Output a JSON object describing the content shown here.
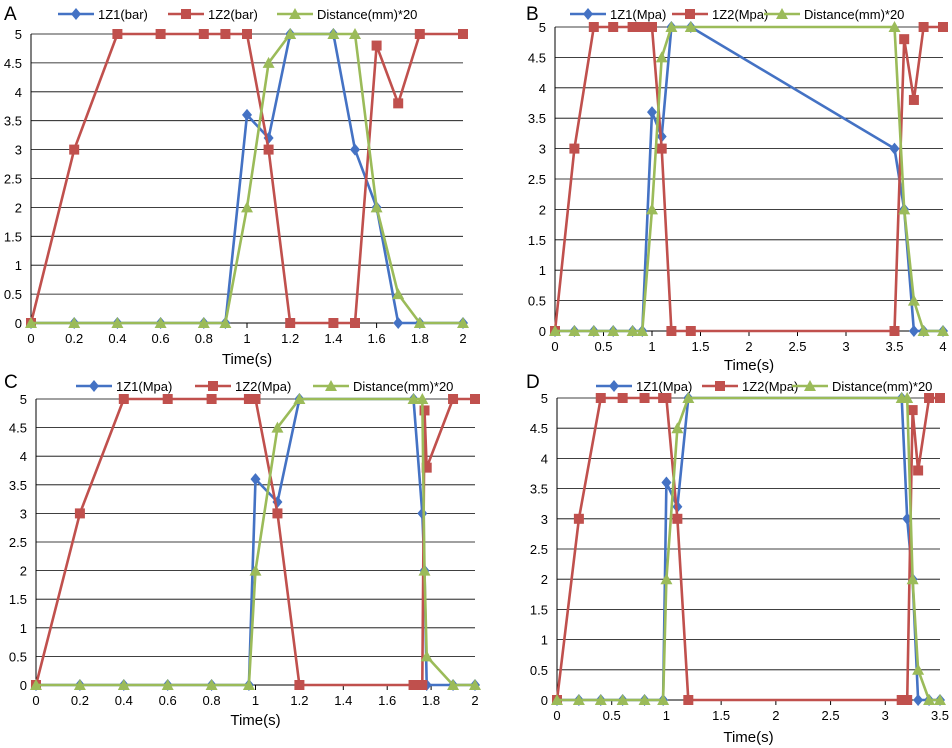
{
  "panels": [
    {
      "letter": "A",
      "chart_data": {
        "type": "line",
        "xlabel": "Time(s)",
        "ylabel": "",
        "xlim": [
          0,
          2
        ],
        "ylim": [
          0,
          5
        ],
        "xticks": [
          0,
          0.2,
          0.4,
          0.6,
          0.8,
          1,
          1.2,
          1.4,
          1.6,
          1.8,
          2
        ],
        "xtick_labels": [
          "0",
          "0.2",
          "0.4",
          "0.6",
          "0.8",
          "1",
          "1.2",
          "1.4",
          "1.6",
          "1.8",
          "2"
        ],
        "yticks": [
          0,
          0.5,
          1,
          1.5,
          2,
          2.5,
          3,
          3.5,
          4,
          4.5,
          5
        ],
        "ytick_labels": [
          "0",
          "0.5",
          "1",
          "1.5",
          "2",
          "2.5",
          "3",
          "3.5",
          "4",
          "4.5",
          "5"
        ],
        "grid": "horizontal",
        "legend": "top",
        "series": [
          {
            "name": "1Z1(bar)",
            "color": "#4472C4",
            "marker": "diamond",
            "x": [
              0,
              0.2,
              0.4,
              0.6,
              0.8,
              0.9,
              1.0,
              1.1,
              1.2,
              1.4,
              1.5,
              1.6,
              1.7,
              1.8,
              2.0
            ],
            "y": [
              0,
              0,
              0,
              0,
              0,
              0,
              3.6,
              3.2,
              5,
              5,
              3,
              2,
              0,
              0,
              0
            ]
          },
          {
            "name": "1Z2(bar)",
            "color": "#C0504D",
            "marker": "square",
            "x": [
              0,
              0.2,
              0.4,
              0.6,
              0.8,
              0.9,
              1.0,
              1.1,
              1.2,
              1.4,
              1.5,
              1.6,
              1.7,
              1.8,
              2.0
            ],
            "y": [
              0,
              3,
              5,
              5,
              5,
              5,
              5,
              3,
              0,
              0,
              0,
              4.8,
              3.8,
              5,
              5
            ]
          },
          {
            "name": "Distance(mm)*20",
            "color": "#9BBB59",
            "marker": "triangle",
            "x": [
              0,
              0.2,
              0.4,
              0.6,
              0.8,
              0.9,
              1.0,
              1.1,
              1.2,
              1.4,
              1.5,
              1.6,
              1.7,
              1.8,
              2.0
            ],
            "y": [
              0,
              0,
              0,
              0,
              0,
              0,
              2,
              4.5,
              5,
              5,
              5,
              2,
              0.5,
              0,
              0
            ]
          }
        ]
      }
    },
    {
      "letter": "B",
      "chart_data": {
        "type": "line",
        "xlabel": "Time(s)",
        "ylabel": "",
        "xlim": [
          0,
          4
        ],
        "ylim": [
          0,
          5
        ],
        "xticks": [
          0,
          0.5,
          1,
          1.5,
          2,
          2.5,
          3,
          3.5,
          4
        ],
        "xtick_labels": [
          "0",
          "0.5",
          "1",
          "1.5",
          "2",
          "2.5",
          "3",
          "3.5",
          "4"
        ],
        "yticks": [
          0,
          0.5,
          1,
          1.5,
          2,
          2.5,
          3,
          3.5,
          4,
          4.5,
          5
        ],
        "ytick_labels": [
          "0",
          "0.5",
          "1",
          "1.5",
          "2",
          "2.5",
          "3",
          "3.5",
          "4",
          "4.5",
          "5"
        ],
        "grid": "horizontal",
        "legend": "top",
        "series": [
          {
            "name": "1Z1(Mpa)",
            "color": "#4472C4",
            "marker": "diamond",
            "x": [
              0,
              0.2,
              0.4,
              0.6,
              0.8,
              0.9,
              1.0,
              1.1,
              1.2,
              1.4,
              3.5,
              3.6,
              3.7,
              3.8,
              4.0
            ],
            "y": [
              0,
              0,
              0,
              0,
              0,
              0,
              3.6,
              3.2,
              5,
              5,
              3,
              2,
              0,
              0,
              0
            ]
          },
          {
            "name": "1Z2(Mpa)",
            "color": "#C0504D",
            "marker": "square",
            "x": [
              0,
              0.2,
              0.4,
              0.6,
              0.8,
              0.9,
              1.0,
              1.1,
              1.2,
              1.4,
              3.5,
              3.6,
              3.7,
              3.8,
              4.0
            ],
            "y": [
              0,
              3,
              5,
              5,
              5,
              5,
              5,
              3,
              0,
              0,
              0,
              4.8,
              3.8,
              5,
              5
            ]
          },
          {
            "name": "Distance(mm)*20",
            "color": "#9BBB59",
            "marker": "triangle",
            "x": [
              0,
              0.2,
              0.4,
              0.6,
              0.8,
              0.9,
              1.0,
              1.1,
              1.2,
              1.4,
              3.5,
              3.6,
              3.7,
              3.8,
              4.0
            ],
            "y": [
              0,
              0,
              0,
              0,
              0,
              0,
              2,
              4.5,
              5,
              5,
              5,
              2,
              0.5,
              0,
              0
            ]
          }
        ]
      }
    },
    {
      "letter": "C",
      "chart_data": {
        "type": "line",
        "xlabel": "Time(s)",
        "ylabel": "",
        "xlim": [
          0,
          2
        ],
        "ylim": [
          0,
          5
        ],
        "xticks": [
          0,
          0.2,
          0.4,
          0.6,
          0.8,
          1,
          1.2,
          1.4,
          1.6,
          1.8,
          2
        ],
        "xtick_labels": [
          "0",
          "0.2",
          "0.4",
          "0.6",
          "0.8",
          "1",
          "1.2",
          "1.4",
          "1.6",
          "1.8",
          "2"
        ],
        "yticks": [
          0,
          0.5,
          1,
          1.5,
          2,
          2.5,
          3,
          3.5,
          4,
          4.5,
          5
        ],
        "ytick_labels": [
          "0",
          "0.5",
          "1",
          "1.5",
          "2",
          "2.5",
          "3",
          "3.5",
          "4",
          "4.5",
          "5"
        ],
        "grid": "horizontal",
        "legend": "top",
        "series": [
          {
            "name": "1Z1(Mpa)",
            "color": "#4472C4",
            "marker": "diamond",
            "x": [
              0,
              0.2,
              0.4,
              0.6,
              0.8,
              0.97,
              1.0,
              1.1,
              1.2,
              1.72,
              1.76,
              1.77,
              1.78,
              1.9,
              2.0
            ],
            "y": [
              0,
              0,
              0,
              0,
              0,
              0,
              3.6,
              3.2,
              5,
              5,
              3,
              2,
              0,
              0,
              0
            ]
          },
          {
            "name": "1Z2(Mpa)",
            "color": "#C0504D",
            "marker": "square",
            "x": [
              0,
              0.2,
              0.4,
              0.6,
              0.8,
              0.97,
              1.0,
              1.1,
              1.2,
              1.72,
              1.76,
              1.77,
              1.78,
              1.9,
              2.0
            ],
            "y": [
              0,
              3,
              5,
              5,
              5,
              5,
              5,
              3,
              0,
              0,
              0,
              4.8,
              3.8,
              5,
              5
            ]
          },
          {
            "name": "Distance(mm)*20",
            "color": "#9BBB59",
            "marker": "triangle",
            "x": [
              0,
              0.2,
              0.4,
              0.6,
              0.8,
              0.97,
              1.0,
              1.1,
              1.2,
              1.72,
              1.76,
              1.77,
              1.78,
              1.9,
              2.0
            ],
            "y": [
              0,
              0,
              0,
              0,
              0,
              0,
              2,
              4.5,
              5,
              5,
              5,
              2,
              0.5,
              0,
              0
            ]
          }
        ]
      }
    },
    {
      "letter": "D",
      "chart_data": {
        "type": "line",
        "xlabel": "Time(s)",
        "ylabel": "",
        "xlim": [
          0,
          3.5
        ],
        "ylim": [
          0,
          5
        ],
        "xticks": [
          0,
          0.5,
          1,
          1.5,
          2,
          2.5,
          3,
          3.5
        ],
        "xtick_labels": [
          "0",
          "0.5",
          "1",
          "1.5",
          "2",
          "2.5",
          "3",
          "3.5"
        ],
        "yticks": [
          0,
          0.5,
          1,
          1.5,
          2,
          2.5,
          3,
          3.5,
          4,
          4.5,
          5
        ],
        "ytick_labels": [
          "0",
          "0.5",
          "1",
          "1.5",
          "2",
          "2.5",
          "3",
          "3.5",
          "4",
          "4.5",
          "5"
        ],
        "grid": "horizontal",
        "legend": "top",
        "series": [
          {
            "name": "1Z1(Mpa)",
            "color": "#4472C4",
            "marker": "diamond",
            "x": [
              0,
              0.2,
              0.4,
              0.6,
              0.8,
              0.97,
              1.0,
              1.1,
              1.2,
              3.15,
              3.2,
              3.25,
              3.3,
              3.4,
              3.5
            ],
            "y": [
              0,
              0,
              0,
              0,
              0,
              0,
              3.6,
              3.2,
              5,
              5,
              3,
              2,
              0,
              0,
              0
            ]
          },
          {
            "name": "1Z2(Mpa)",
            "color": "#C0504D",
            "marker": "square",
            "x": [
              0,
              0.2,
              0.4,
              0.6,
              0.8,
              0.97,
              1.0,
              1.1,
              1.2,
              3.15,
              3.2,
              3.25,
              3.3,
              3.4,
              3.5
            ],
            "y": [
              0,
              3,
              5,
              5,
              5,
              5,
              5,
              3,
              0,
              0,
              0,
              4.8,
              3.8,
              5,
              5
            ]
          },
          {
            "name": "Distance(mm)*20",
            "color": "#9BBB59",
            "marker": "triangle",
            "x": [
              0,
              0.2,
              0.4,
              0.6,
              0.8,
              0.97,
              1.0,
              1.1,
              1.2,
              3.15,
              3.2,
              3.25,
              3.3,
              3.4,
              3.5
            ],
            "y": [
              0,
              0,
              0,
              0,
              0,
              0,
              2,
              4.5,
              5,
              5,
              5,
              2,
              0.5,
              0,
              0
            ]
          }
        ]
      }
    }
  ]
}
